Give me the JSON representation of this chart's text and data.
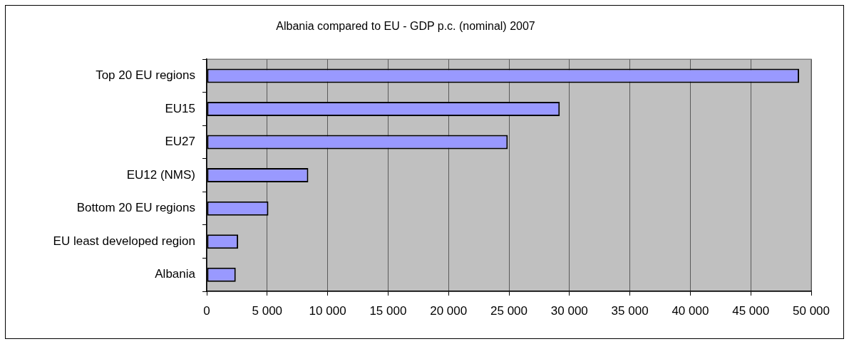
{
  "chart_data": {
    "type": "bar",
    "orientation": "horizontal",
    "title": "Albania compared to EU - GDP p.c. (nominal) 2007",
    "categories": [
      "Top 20 EU regions",
      "EU15",
      "EU27",
      "EU12 (NMS)",
      "Bottom 20 EU regions",
      "EU least developed region",
      "Albania"
    ],
    "values": [
      49000,
      29200,
      24900,
      8400,
      5100,
      2600,
      2400
    ],
    "color": "#9999ff",
    "xlim": [
      0,
      50000
    ],
    "xticks": [
      0,
      {
        "value": 5000,
        "label": "5 000"
      },
      {
        "value": 10000,
        "label": "10 000"
      },
      {
        "value": 15000,
        "label": "15 000"
      },
      {
        "value": 20000,
        "label": "20 000"
      },
      {
        "value": 25000,
        "label": "25 000"
      },
      {
        "value": 30000,
        "label": "30 000"
      },
      {
        "value": 35000,
        "label": "35 000"
      },
      {
        "value": 40000,
        "label": "40 000"
      },
      {
        "value": 45000,
        "label": "45 000"
      },
      {
        "value": 50000,
        "label": "50 000"
      }
    ],
    "grid": "x"
  }
}
